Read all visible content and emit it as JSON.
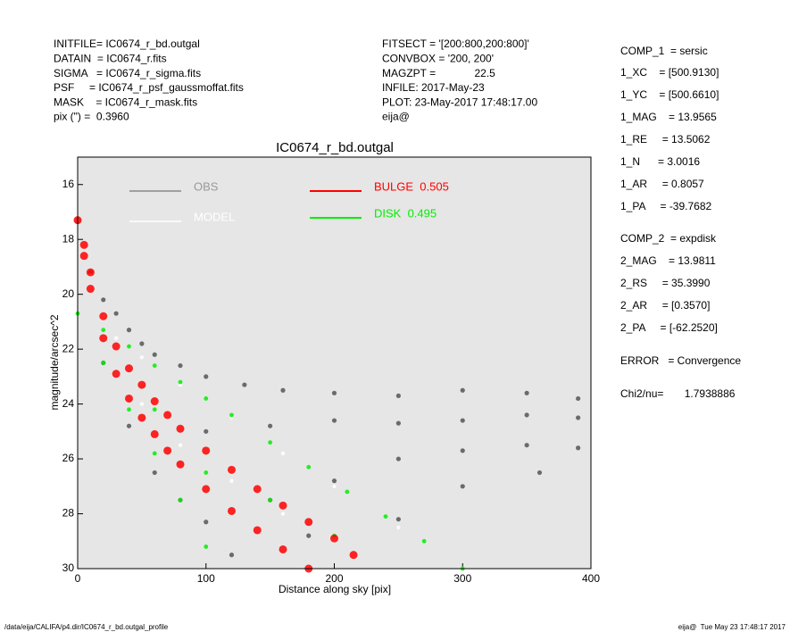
{
  "header": {
    "left": [
      "INITFILE= IC0674_r_bd.outgal",
      "DATAIN  = IC0674_r.fits",
      "SIGMA   = IC0674_r_sigma.fits",
      "PSF     = IC0674_r_psf_gaussmoffat.fits",
      "MASK    = IC0674_r_mask.fits",
      "pix (\") =  0.3960"
    ],
    "middle": [
      "FITSECT = '[200:800,200:800]'",
      "CONVBOX = '200, 200'",
      "MAGZPT =             22.5",
      "INFILE: 2017-May-23",
      "PLOT: 23-May-2017 17:48:17.00",
      "eija@"
    ]
  },
  "side": [
    "COMP_1  = sersic",
    "1_XC    = [500.9130]",
    "1_YC    = [500.6610]",
    "1_MAG    = 13.9565",
    "1_RE     = 13.5062",
    "1_N      = 3.0016",
    "1_AR     = 0.8057",
    "1_PA     = -39.7682",
    "COMP_2  = expdisk",
    "2_MAG    = 13.9811",
    "2_RS     = 35.3990",
    "2_AR     = [0.3570]",
    "2_PA     = [-62.2520]",
    "ERROR   = Convergence",
    "Chi2/nu=       1.7938886"
  ],
  "footer": {
    "left": "/data/eija/CALIFA/p4.dir/IC0674_r_bd.outgal_profile",
    "right": "eija@  Tue May 23 17:48:17 2017"
  },
  "chart_data": {
    "type": "scatter",
    "title": "IC0674_r_bd.outgal",
    "x_label": "Distance along sky [pix]",
    "y_label": "magnitude/arcsec^2",
    "xlim": [
      0,
      400
    ],
    "xticks": [
      0,
      100,
      200,
      300,
      400
    ],
    "ylim": [
      30,
      15
    ],
    "yticks": [
      16,
      18,
      20,
      22,
      24,
      26,
      28,
      30
    ],
    "series": [
      {
        "name": "OBS",
        "color": "#555555",
        "x": [
          0,
          10,
          20,
          30,
          40,
          50,
          60,
          80,
          100,
          130,
          160,
          200,
          250,
          300,
          350,
          390,
          20,
          40,
          60,
          80,
          100,
          150,
          200,
          250,
          300,
          350,
          390,
          100,
          150,
          200,
          250,
          300,
          350,
          390,
          120,
          180,
          250,
          300,
          360
        ],
        "y": [
          17.3,
          19.2,
          20.2,
          20.7,
          21.3,
          21.8,
          22.2,
          22.6,
          23,
          23.3,
          23.5,
          23.6,
          23.7,
          23.5,
          23.6,
          23.8,
          22.5,
          24.8,
          26.5,
          27.5,
          28.3,
          27.5,
          26.8,
          26,
          25.7,
          25.5,
          25.6,
          25,
          24.8,
          24.6,
          24.7,
          24.6,
          24.4,
          24.5,
          29.5,
          28.8,
          28.2,
          27,
          26.5
        ]
      },
      {
        "name": "MODEL",
        "color": "#ffffff",
        "x": [
          0,
          10,
          20,
          30,
          50,
          50,
          80,
          80,
          120,
          120,
          160,
          160,
          200,
          200,
          250,
          300
        ],
        "y": [
          17.3,
          19.3,
          20.8,
          21.6,
          22.3,
          24,
          23.3,
          25.5,
          24.5,
          26.8,
          25.8,
          28,
          27,
          29,
          28.5,
          30
        ]
      },
      {
        "name": "DISK  0.495",
        "color": "#00ee00",
        "x": [
          0,
          20,
          20,
          40,
          40,
          60,
          60,
          80,
          80,
          100,
          100,
          120,
          150,
          180,
          210,
          240,
          270,
          300,
          60,
          100,
          150,
          200
        ],
        "y": [
          20.7,
          21.3,
          22.5,
          21.9,
          24.2,
          22.6,
          25.8,
          23.2,
          27.5,
          23.8,
          29.2,
          24.4,
          25.4,
          26.3,
          27.2,
          28.1,
          29,
          30,
          24.2,
          26.5,
          27.5,
          28.8
        ]
      },
      {
        "name": "BULGE  0.505",
        "color": "#ff0000",
        "x": [
          0,
          5,
          5,
          10,
          10,
          20,
          20,
          30,
          30,
          40,
          40,
          50,
          50,
          60,
          60,
          70,
          70,
          80,
          80,
          100,
          100,
          120,
          120,
          140,
          140,
          160,
          160,
          180,
          180,
          200,
          215
        ],
        "y": [
          17.3,
          18.2,
          18.6,
          19.2,
          19.8,
          20.8,
          21.6,
          21.9,
          22.9,
          22.7,
          23.8,
          23.3,
          24.5,
          23.9,
          25.1,
          24.4,
          25.7,
          24.9,
          26.2,
          25.7,
          27.1,
          26.4,
          27.9,
          27.1,
          28.6,
          27.7,
          29.3,
          28.3,
          30,
          28.9,
          29.5
        ]
      }
    ]
  }
}
